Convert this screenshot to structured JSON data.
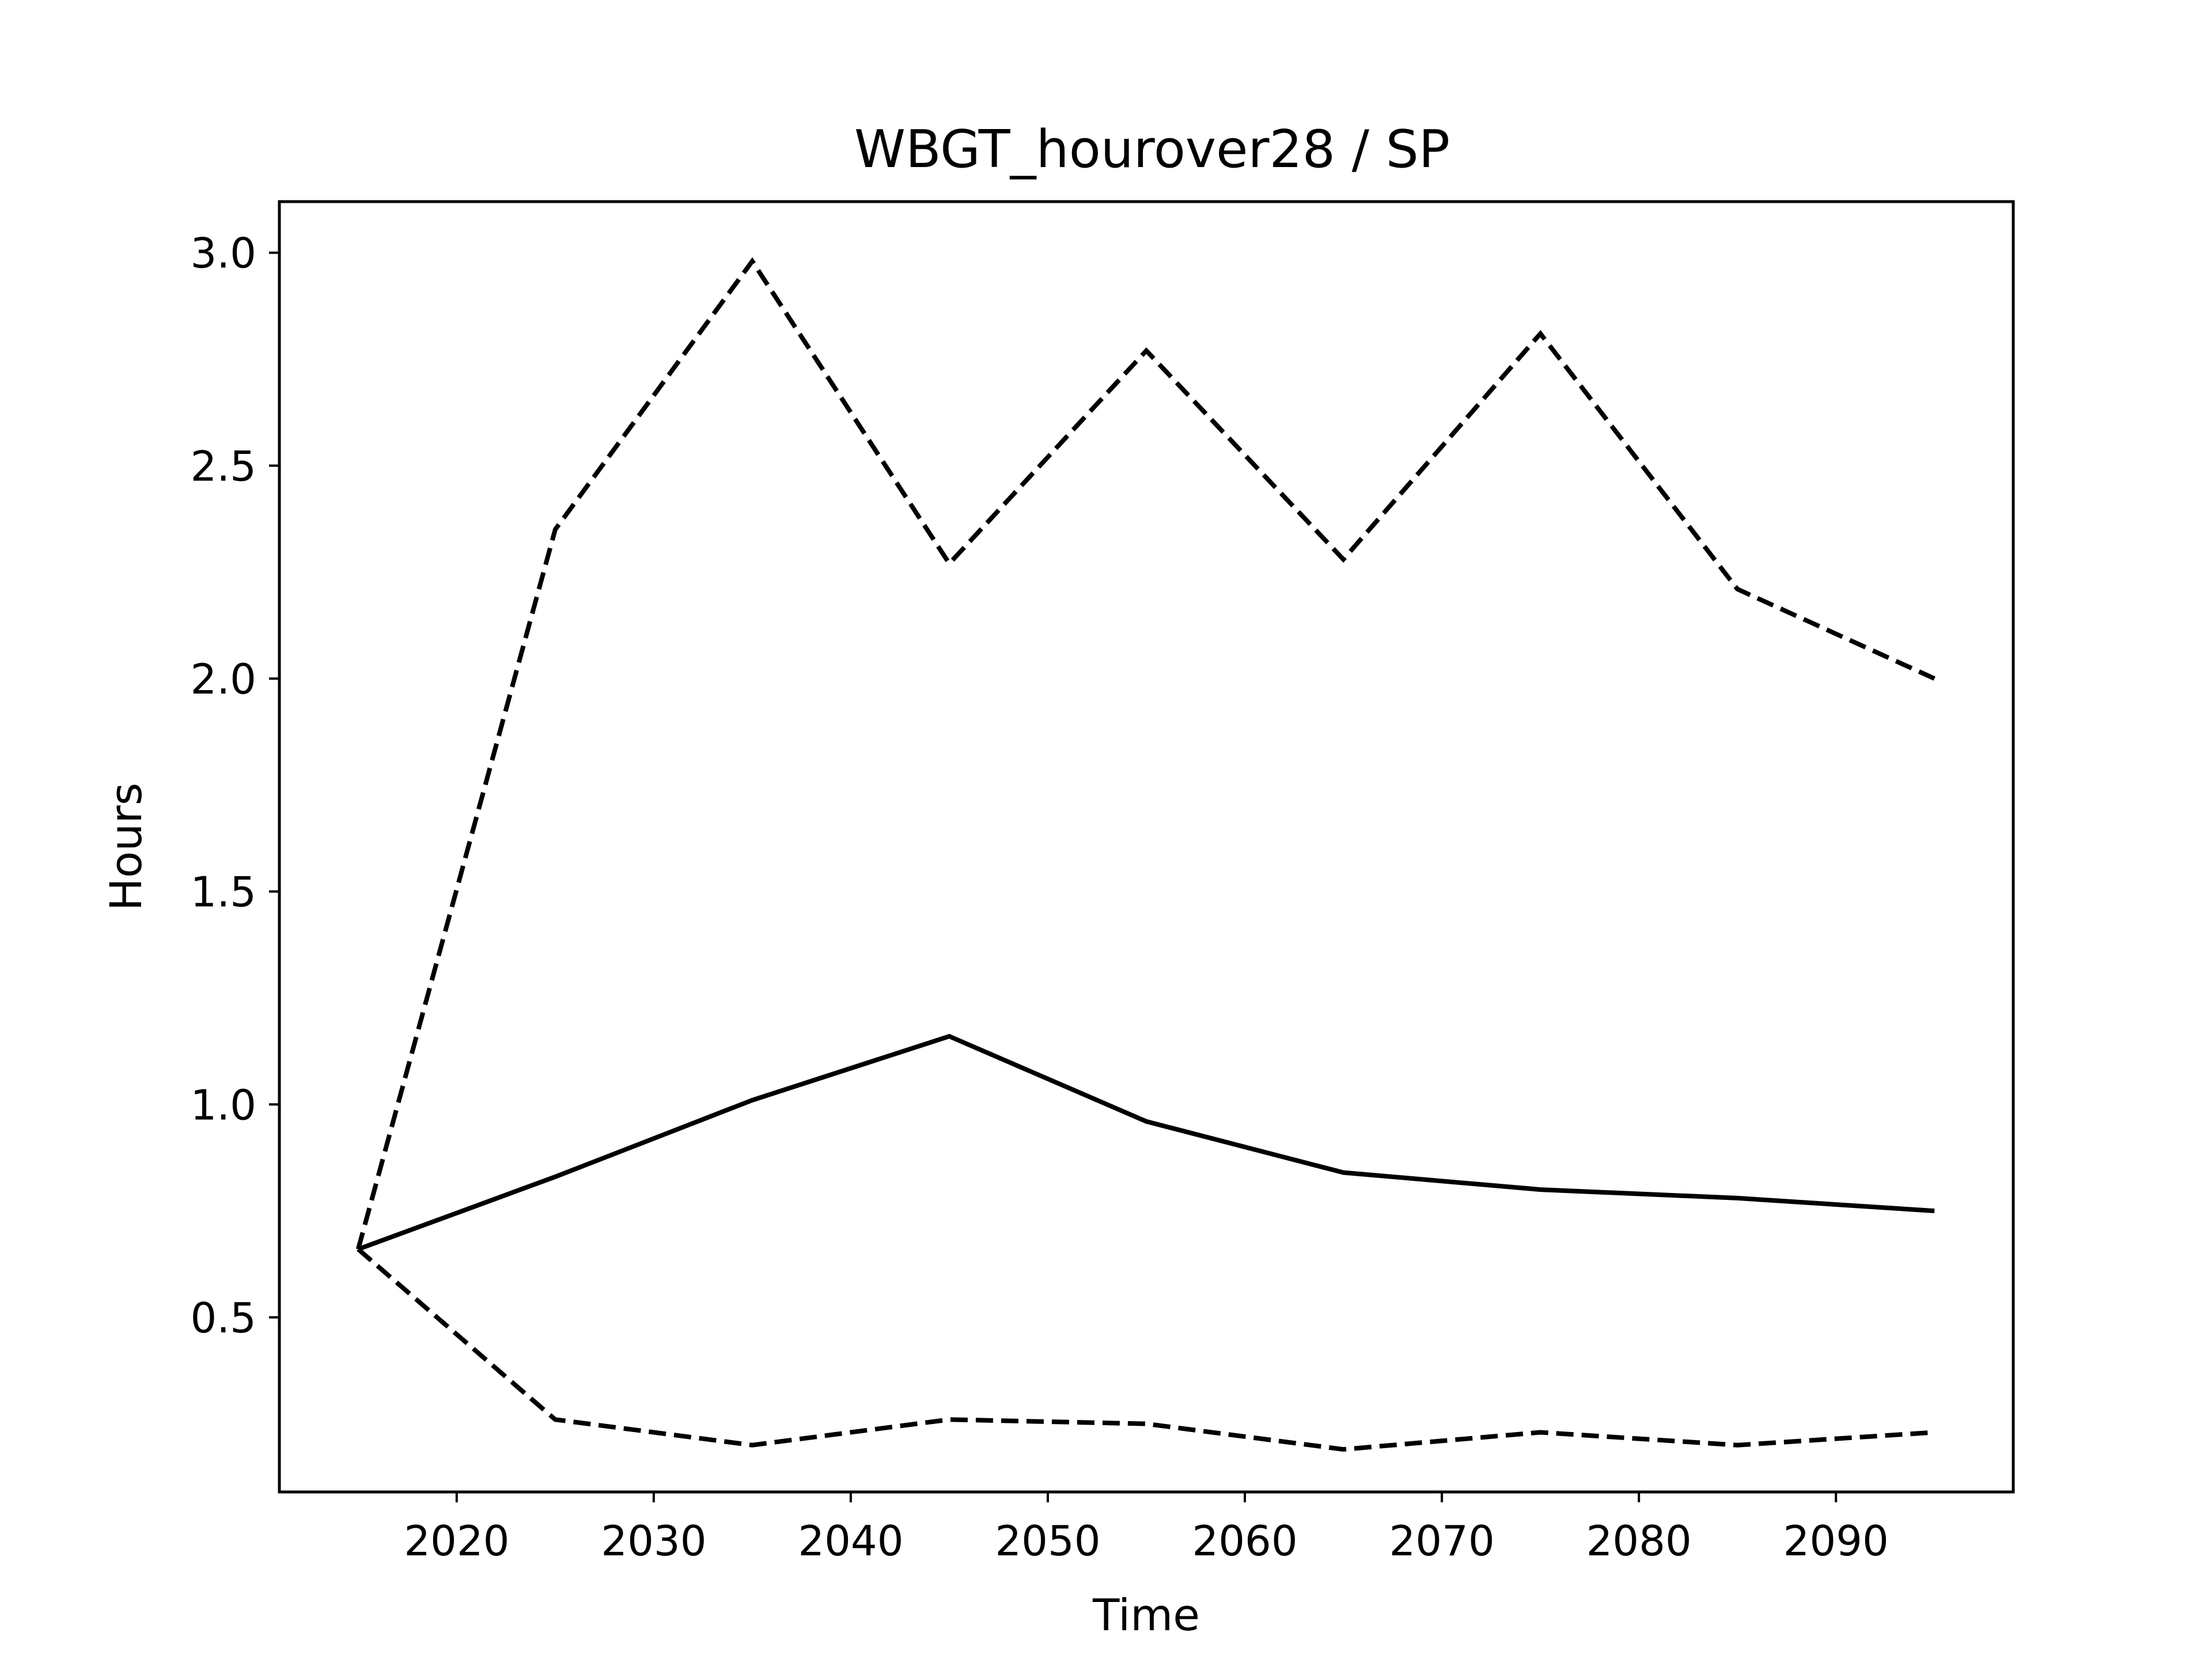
{
  "chart_data": {
    "type": "line",
    "title": "WBGT_hourover28 / SP",
    "xlabel": "Time",
    "ylabel": "Hours",
    "xlim": [
      2011,
      2099
    ],
    "ylim": [
      0.09,
      3.12
    ],
    "xticks": [
      2020,
      2030,
      2040,
      2050,
      2060,
      2070,
      2080,
      2090
    ],
    "yticks": [
      0.5,
      1.0,
      1.5,
      2.0,
      2.5,
      3.0
    ],
    "ytick_labels": [
      "0.5",
      "1.0",
      "1.5",
      "2.0",
      "2.5",
      "3.0"
    ],
    "grid": false,
    "legend": "none",
    "x": [
      2015,
      2025,
      2035,
      2045,
      2055,
      2065,
      2075,
      2085,
      2095
    ],
    "series": [
      {
        "style": "solid",
        "color": "#000000",
        "values": [
          0.66,
          0.83,
          1.01,
          1.16,
          0.96,
          0.84,
          0.8,
          0.78,
          0.75
        ]
      },
      {
        "style": "dashed",
        "color": "#000000",
        "values": [
          0.66,
          2.35,
          2.98,
          2.27,
          2.77,
          2.28,
          2.81,
          2.21,
          2.0
        ]
      },
      {
        "style": "dashed",
        "color": "#000000",
        "values": [
          0.66,
          0.26,
          0.2,
          0.26,
          0.25,
          0.19,
          0.23,
          0.2,
          0.23
        ]
      }
    ]
  }
}
